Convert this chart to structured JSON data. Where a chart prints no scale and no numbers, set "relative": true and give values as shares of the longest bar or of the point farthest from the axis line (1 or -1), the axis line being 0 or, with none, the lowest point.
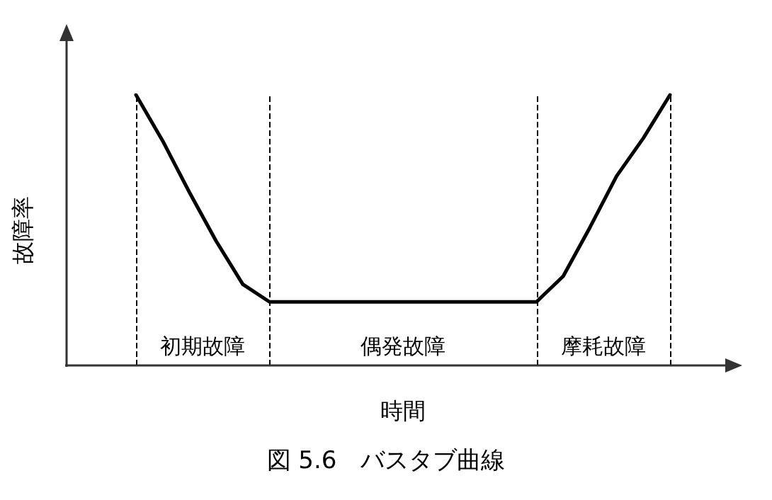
{
  "chart_data": {
    "type": "line",
    "title": "図 5.6　バスタブ曲線",
    "xlabel": "時間",
    "ylabel": "故障率",
    "relative": true,
    "categories": [
      null,
      null,
      null,
      null,
      null,
      null,
      null,
      null,
      null,
      null,
      null,
      null,
      null,
      null,
      null,
      null,
      null,
      null,
      null,
      null,
      null
    ],
    "series": [
      {
        "color": "#000000",
        "values": [
          1,
          0.83,
          0.64,
          0.46,
          0.3,
          0.235,
          0.235,
          0.235,
          0.235,
          0.235,
          0.235,
          0.235,
          0.235,
          0.235,
          0.235,
          0.235,
          0.33,
          0.51,
          0.7,
          0.84,
          1
        ]
      }
    ],
    "annotations": [
      "初期故障",
      "偶発故障",
      "摩耗故障"
    ],
    "grid": "x",
    "marker": "none",
    "line_style": "solid"
  }
}
